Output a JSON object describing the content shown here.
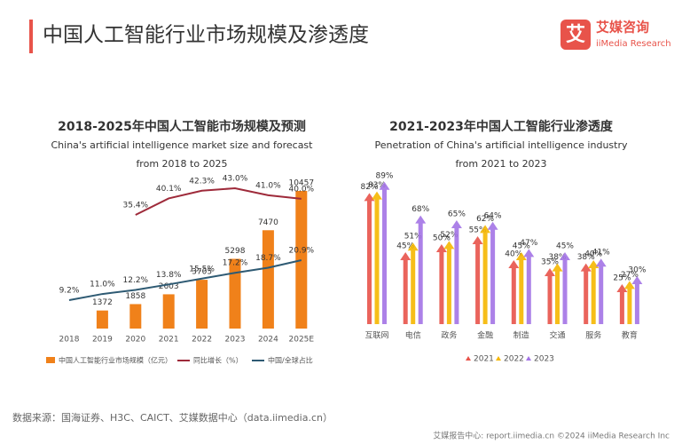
{
  "header": {
    "title": "中国人工智能行业市场规模及渗透度",
    "logo_icon": "艾",
    "logo_name": "艾媒咨询",
    "logo_sub": "iiMedia Research"
  },
  "chart_data": [
    {
      "type": "combo",
      "title": "2018-2025年中国人工智能市场规模及预测",
      "subtitle": [
        "China's artificial intelligence market size and forecast",
        "from 2018 to 2025"
      ],
      "categories": [
        "2018",
        "2019",
        "2020",
        "2021",
        "2022",
        "2023",
        "2024",
        "2025E"
      ],
      "series": [
        {
          "name": "中国人工智能行业市场规模（亿元）",
          "kind": "bar",
          "color": "#f0811a",
          "values": [
            null,
            1372,
            1858,
            2603,
            3705,
            5298,
            7470,
            10457
          ]
        },
        {
          "name": "同比增长（%）",
          "kind": "line",
          "color": "#9e2a3a",
          "values": [
            null,
            null,
            35.4,
            40.1,
            42.3,
            43.0,
            41.0,
            40.0
          ],
          "value_labels": [
            null,
            null,
            "35.4%",
            "40.1%",
            "42.3%",
            "43.0%",
            "41.0%",
            "40.0%"
          ]
        },
        {
          "name": "中国/全球占比",
          "kind": "line",
          "color": "#2e5a73",
          "values": [
            9.2,
            11.0,
            12.2,
            13.8,
            15.5,
            17.2,
            18.7,
            20.9
          ],
          "value_labels": [
            "9.2%",
            "11.0%",
            "12.2%",
            "13.8%",
            "15.5%",
            "17.2%",
            "18.7%",
            "20.9%"
          ]
        }
      ]
    },
    {
      "type": "bar",
      "title": "2021-2023年中国人工智能行业渗透度",
      "subtitle": [
        "Penetration of China's artificial intelligence industry",
        "from 2021 to 2023"
      ],
      "categories": [
        "互联网",
        "电信",
        "政务",
        "金融",
        "制造",
        "交通",
        "服务",
        "教育"
      ],
      "series": [
        {
          "name": "2021",
          "color": "#e8534a",
          "values": [
            82,
            45,
            50,
            55,
            40,
            35,
            38,
            25
          ],
          "value_labels": [
            "82%",
            "45%",
            "50%",
            "55%",
            "40%",
            "35%",
            "38%",
            "25%"
          ]
        },
        {
          "name": "2022",
          "color": "#f5b700",
          "values": [
            83,
            51,
            52,
            62,
            45,
            38,
            40,
            27
          ],
          "value_labels": [
            "83%",
            "51%",
            "52%",
            "62%",
            "45%",
            "38%",
            "40%",
            "27%"
          ]
        },
        {
          "name": "2023",
          "color": "#a373e6",
          "values": [
            89,
            68,
            65,
            64,
            47,
            45,
            41,
            30
          ],
          "value_labels": [
            "89%",
            "68%",
            "65%",
            "64%",
            "47%",
            "45%",
            "41%",
            "30%"
          ]
        }
      ]
    }
  ],
  "footer": {
    "source": "数据来源：国海证券、H3C、CAICT、艾媒数据中心（data.iimedia.cn）",
    "credit": "艾媒报告中心: report.iimedia.cn ©2024 iiMedia Research Inc"
  }
}
